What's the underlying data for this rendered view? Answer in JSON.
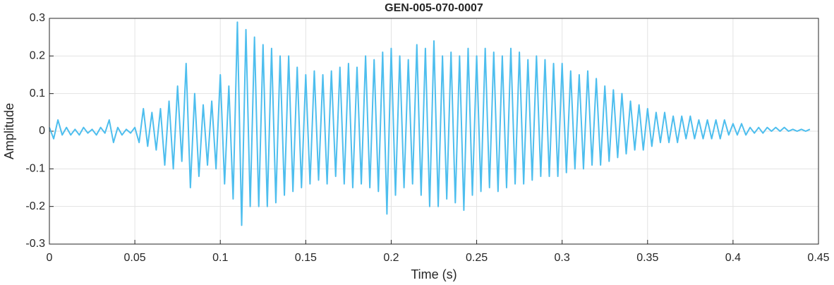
{
  "chart_data": {
    "type": "line",
    "title": "GEN-005-070-0007",
    "xlabel": "Time (s)",
    "ylabel": "Amplitude",
    "color": "#4dbeee",
    "grid": true,
    "xlim": [
      0,
      0.45
    ],
    "ylim": [
      -0.3,
      0.3
    ],
    "xticks": [
      0,
      0.05,
      0.1,
      0.15,
      0.2,
      0.25,
      0.3,
      0.35,
      0.4,
      0.45
    ],
    "yticks": [
      -0.3,
      -0.2,
      -0.1,
      0,
      0.1,
      0.2,
      0.3
    ],
    "x": [
      0,
      0.0025,
      0.005,
      0.0075,
      0.01,
      0.0125,
      0.015,
      0.0175,
      0.02,
      0.0225,
      0.025,
      0.0275,
      0.03,
      0.0325,
      0.035,
      0.0375,
      0.04,
      0.0425,
      0.045,
      0.0475,
      0.05,
      0.0525,
      0.055,
      0.0575,
      0.06,
      0.0625,
      0.065,
      0.0675,
      0.07,
      0.0725,
      0.075,
      0.0775,
      0.08,
      0.0825,
      0.085,
      0.0875,
      0.09,
      0.0925,
      0.095,
      0.0975,
      0.1,
      0.1025,
      0.105,
      0.1075,
      0.11,
      0.1125,
      0.115,
      0.1175,
      0.12,
      0.1225,
      0.125,
      0.1275,
      0.13,
      0.1325,
      0.135,
      0.1375,
      0.14,
      0.1425,
      0.145,
      0.1475,
      0.15,
      0.1525,
      0.155,
      0.1575,
      0.16,
      0.1625,
      0.165,
      0.1675,
      0.17,
      0.1725,
      0.175,
      0.1775,
      0.18,
      0.1825,
      0.185,
      0.1875,
      0.19,
      0.1925,
      0.195,
      0.1975,
      0.2,
      0.2025,
      0.205,
      0.2075,
      0.21,
      0.2125,
      0.215,
      0.2175,
      0.22,
      0.2225,
      0.225,
      0.2275,
      0.23,
      0.2325,
      0.235,
      0.2375,
      0.24,
      0.2425,
      0.245,
      0.2475,
      0.25,
      0.2525,
      0.255,
      0.2575,
      0.26,
      0.2625,
      0.265,
      0.2675,
      0.27,
      0.2725,
      0.275,
      0.2775,
      0.28,
      0.2825,
      0.285,
      0.2875,
      0.29,
      0.2925,
      0.295,
      0.2975,
      0.3,
      0.3025,
      0.305,
      0.3075,
      0.31,
      0.3125,
      0.315,
      0.3175,
      0.32,
      0.3225,
      0.325,
      0.3275,
      0.33,
      0.3325,
      0.335,
      0.3375,
      0.34,
      0.3425,
      0.345,
      0.3475,
      0.35,
      0.3525,
      0.355,
      0.3575,
      0.36,
      0.3625,
      0.365,
      0.3675,
      0.37,
      0.3725,
      0.375,
      0.3775,
      0.38,
      0.3825,
      0.385,
      0.3875,
      0.39,
      0.3925,
      0.395,
      0.3975,
      0.4,
      0.4025,
      0.405,
      0.4075,
      0.41,
      0.4125,
      0.415,
      0.4175,
      0.42,
      0.4225,
      0.425,
      0.4275,
      0.43,
      0.4325,
      0.435,
      0.4375,
      0.44,
      0.4425,
      0.445
    ],
    "values": [
      0.01,
      -0.02,
      0.03,
      -0.01,
      0.01,
      -0.01,
      0.005,
      -0.01,
      0.01,
      -0.005,
      0.005,
      -0.01,
      0.01,
      -0.005,
      0.03,
      -0.03,
      0.01,
      -0.01,
      0.005,
      -0.005,
      0.01,
      -0.03,
      0.06,
      -0.04,
      0.05,
      -0.05,
      0.06,
      -0.09,
      0.08,
      -0.1,
      0.12,
      -0.08,
      0.18,
      -0.15,
      0.1,
      -0.12,
      0.07,
      -0.09,
      0.08,
      -0.1,
      0.15,
      -0.14,
      0.12,
      -0.18,
      0.29,
      -0.25,
      0.27,
      -0.2,
      0.25,
      -0.2,
      0.23,
      -0.2,
      0.22,
      -0.19,
      0.2,
      -0.17,
      0.2,
      -0.16,
      0.17,
      -0.15,
      0.15,
      -0.14,
      0.16,
      -0.13,
      0.15,
      -0.14,
      0.16,
      -0.12,
      0.17,
      -0.14,
      0.18,
      -0.15,
      0.17,
      -0.14,
      0.2,
      -0.15,
      0.19,
      -0.16,
      0.21,
      -0.22,
      0.22,
      -0.17,
      0.2,
      -0.15,
      0.19,
      -0.14,
      0.23,
      -0.17,
      0.22,
      -0.2,
      0.24,
      -0.2,
      0.2,
      -0.18,
      0.21,
      -0.19,
      0.2,
      -0.21,
      0.22,
      -0.17,
      0.2,
      -0.16,
      0.22,
      -0.15,
      0.21,
      -0.16,
      0.2,
      -0.15,
      0.22,
      -0.14,
      0.21,
      -0.14,
      0.19,
      -0.13,
      0.2,
      -0.12,
      0.19,
      -0.12,
      0.18,
      -0.12,
      0.18,
      -0.11,
      0.16,
      -0.1,
      0.15,
      -0.1,
      0.16,
      -0.09,
      0.14,
      -0.09,
      0.12,
      -0.08,
      0.11,
      -0.07,
      0.1,
      -0.06,
      0.08,
      -0.05,
      0.07,
      -0.05,
      0.06,
      -0.04,
      0.05,
      -0.03,
      0.05,
      -0.03,
      0.04,
      -0.03,
      0.04,
      -0.02,
      0.04,
      -0.02,
      0.03,
      -0.02,
      0.03,
      -0.02,
      0.03,
      -0.02,
      0.03,
      -0.01,
      0.02,
      -0.01,
      0.02,
      -0.01,
      0.01,
      -0.005,
      0.01,
      -0.005,
      0.01,
      0,
      0.01,
      0,
      0.01,
      0,
      0.005,
      0,
      0.005,
      0,
      0.005
    ]
  }
}
